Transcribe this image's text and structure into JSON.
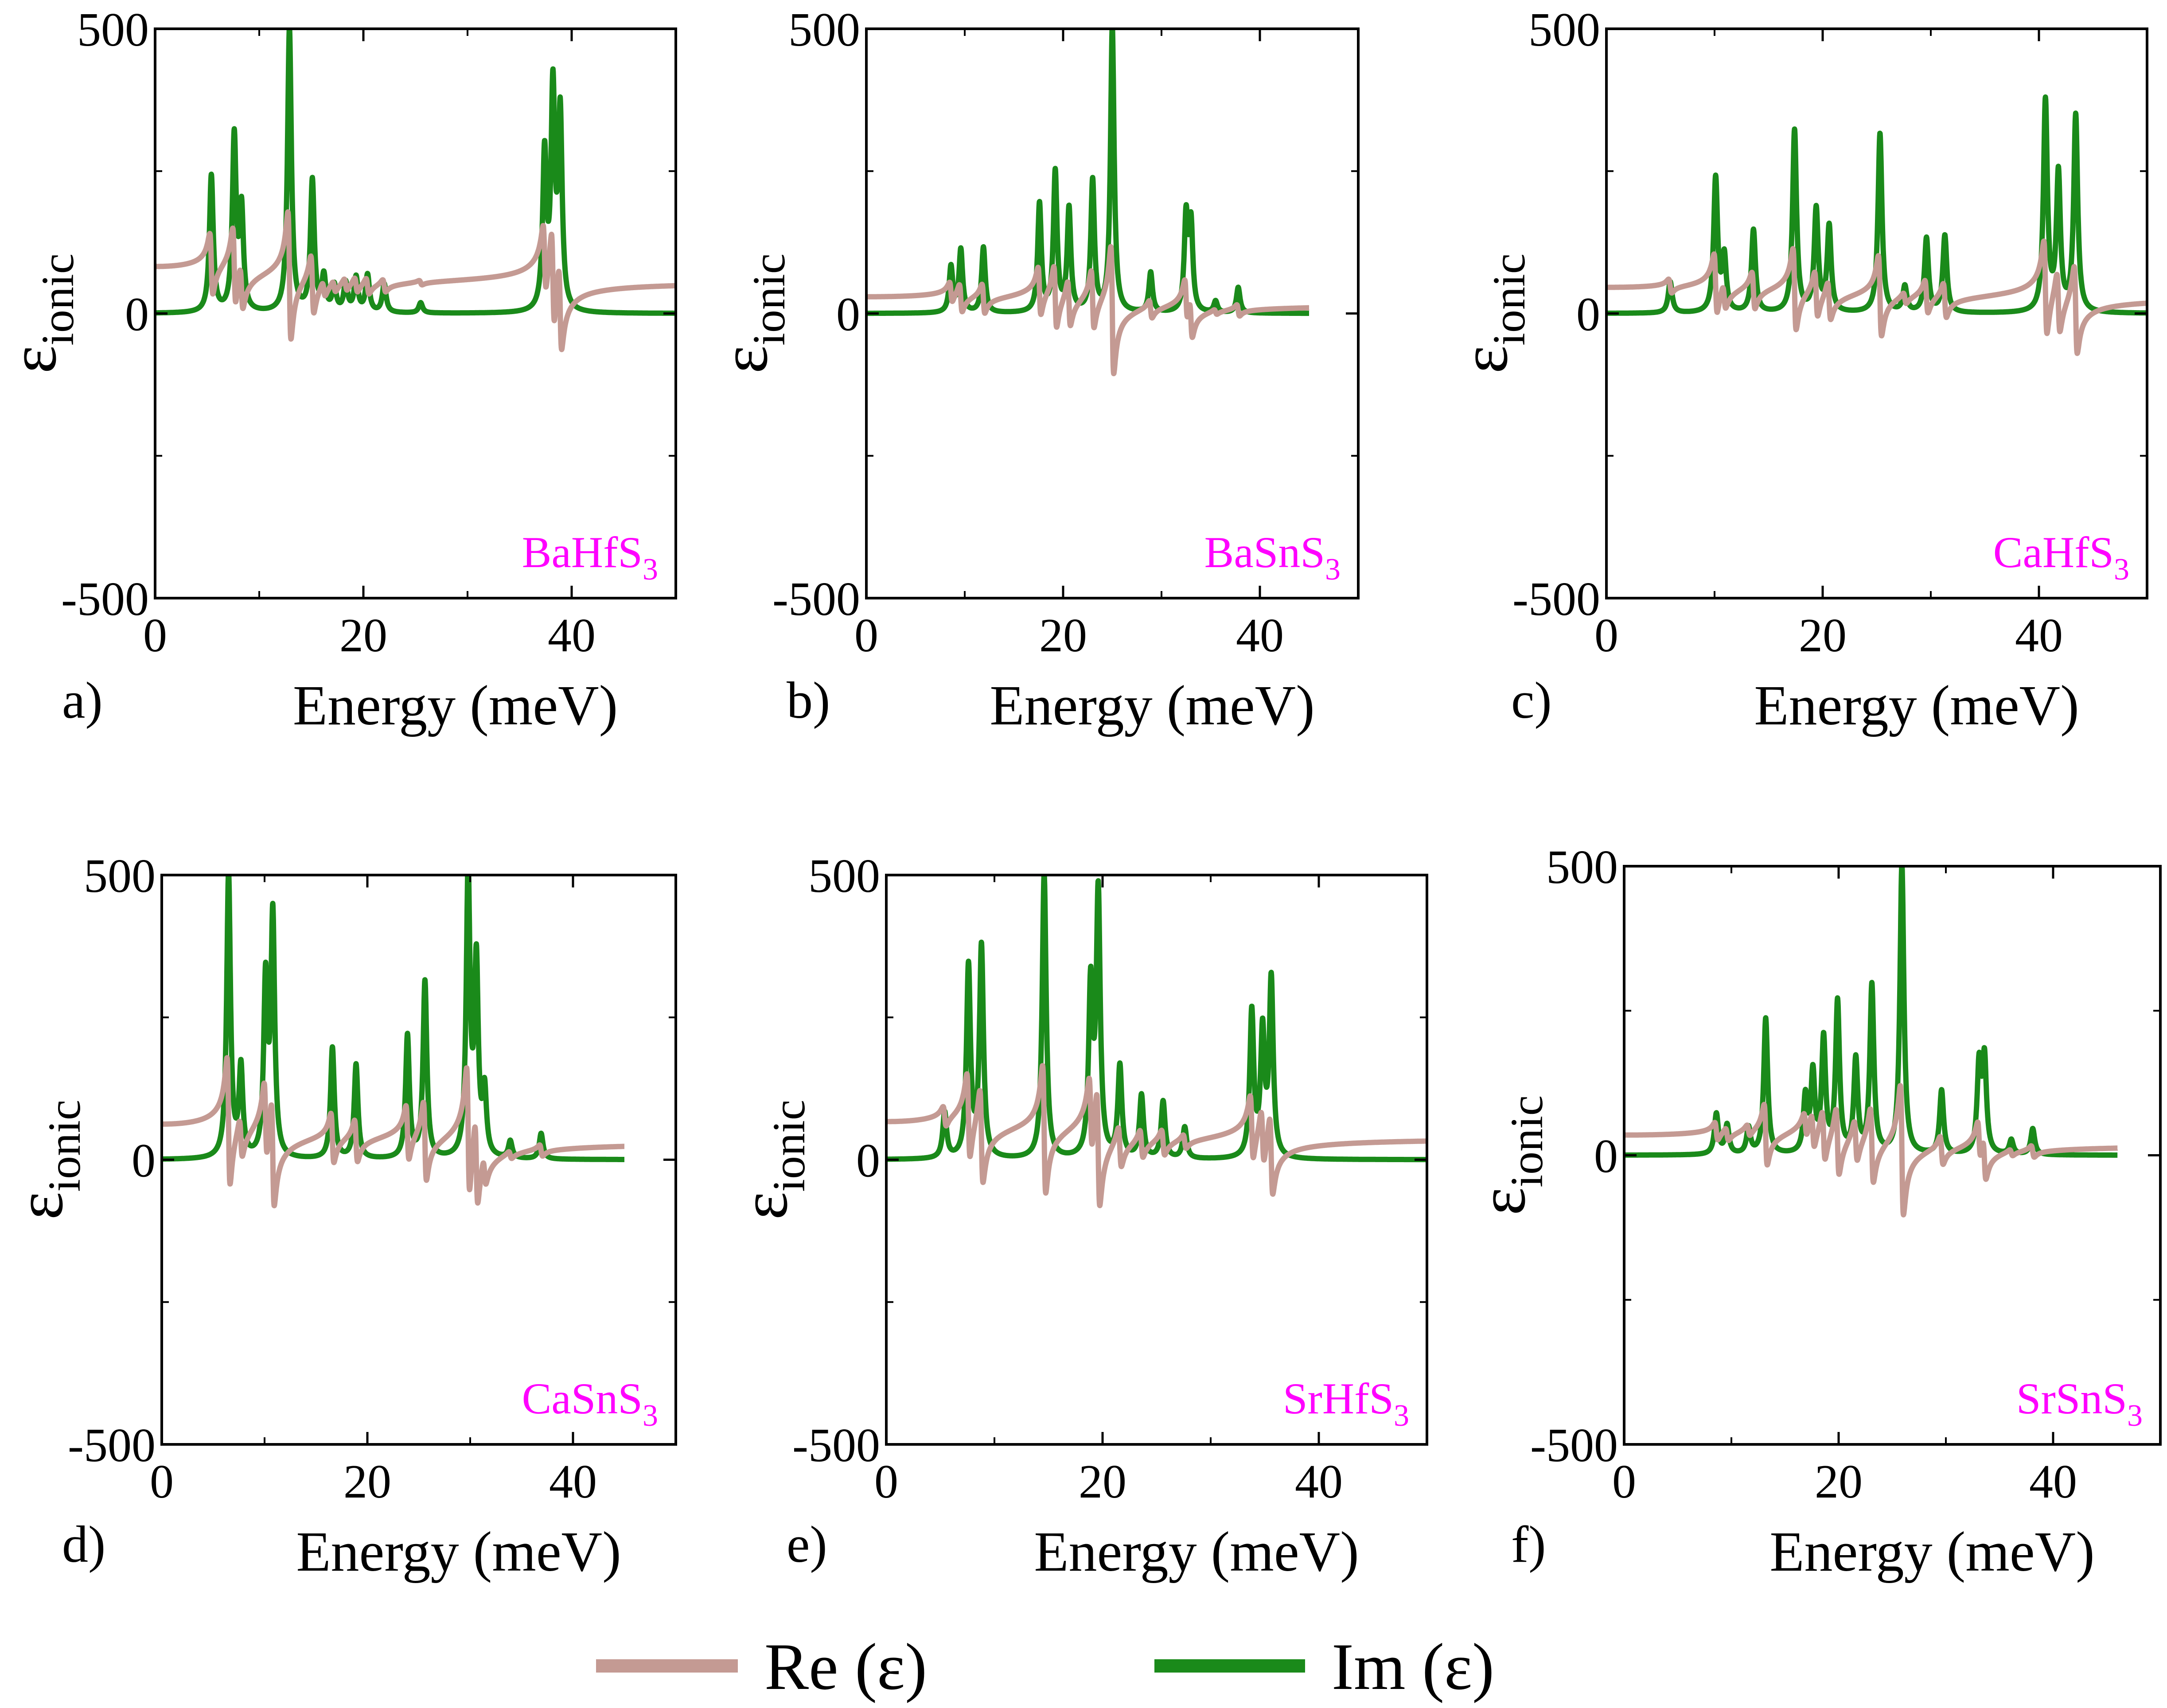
{
  "colors": {
    "re": "#c49a93",
    "im": "#1a8a1a",
    "material": "#ff00ff",
    "axis": "#000000"
  },
  "legend": {
    "re_label": "Re (ε)",
    "im_label": "Im (ε)"
  },
  "chart_data": [
    {
      "type": "line",
      "panel": "a)",
      "material": "BaHfS",
      "material_sub": "3",
      "xlabel": "Energy (meV)",
      "ylabel": "ε",
      "ylabel_sub": "ionic",
      "xlim": [
        0,
        50
      ],
      "ylim": [
        -500,
        500
      ],
      "xticks": [
        0,
        20,
        40
      ],
      "xtick_labels": [
        "0",
        "20",
        "40"
      ],
      "yticks": [
        -500,
        0,
        500
      ],
      "ytick_labels": [
        "-500",
        "0",
        "500"
      ],
      "xmax_data": 50,
      "baseline": 55,
      "modes": [
        {
          "e": 5.4,
          "a": 240
        },
        {
          "e": 7.6,
          "a": 305
        },
        {
          "e": 8.3,
          "a": 175
        },
        {
          "e": 12.9,
          "a": 500
        },
        {
          "e": 15.1,
          "a": 230
        },
        {
          "e": 16.2,
          "a": 60
        },
        {
          "e": 17.2,
          "a": 45
        },
        {
          "e": 18.3,
          "a": 50
        },
        {
          "e": 19.3,
          "a": 60
        },
        {
          "e": 20.4,
          "a": 65
        },
        {
          "e": 22.0,
          "a": 50
        },
        {
          "e": 25.5,
          "a": 18
        },
        {
          "e": 37.4,
          "a": 270
        },
        {
          "e": 38.2,
          "a": 380
        },
        {
          "e": 38.9,
          "a": 340
        }
      ],
      "series": [
        {
          "name": "Re (ε)"
        },
        {
          "name": "Im (ε)"
        }
      ]
    },
    {
      "type": "line",
      "panel": "b)",
      "material": "BaSnS",
      "material_sub": "3",
      "xlabel": "Energy (meV)",
      "ylabel": "ε",
      "ylabel_sub": "ionic",
      "xlim": [
        0,
        50
      ],
      "ylim": [
        -500,
        500
      ],
      "xticks": [
        0,
        20,
        40
      ],
      "xtick_labels": [
        "0",
        "20",
        "40"
      ],
      "yticks": [
        -500,
        0,
        500
      ],
      "ytick_labels": [
        "-500",
        "0",
        "500"
      ],
      "xmax_data": 45,
      "baseline": 15,
      "modes": [
        {
          "e": 8.6,
          "a": 80
        },
        {
          "e": 9.6,
          "a": 110
        },
        {
          "e": 11.9,
          "a": 115
        },
        {
          "e": 17.6,
          "a": 190
        },
        {
          "e": 19.2,
          "a": 245
        },
        {
          "e": 20.6,
          "a": 180
        },
        {
          "e": 23.0,
          "a": 230
        },
        {
          "e": 25.0,
          "a": 500
        },
        {
          "e": 28.9,
          "a": 70
        },
        {
          "e": 32.5,
          "a": 165
        },
        {
          "e": 33.0,
          "a": 150
        },
        {
          "e": 35.5,
          "a": 20
        },
        {
          "e": 37.8,
          "a": 45
        }
      ],
      "series": [
        {
          "name": "Re (ε)"
        },
        {
          "name": "Im (ε)"
        }
      ]
    },
    {
      "type": "line",
      "panel": "c)",
      "material": "CaHfS",
      "material_sub": "3",
      "xlabel": "Energy (meV)",
      "ylabel": "ε",
      "ylabel_sub": "ionic",
      "xlim": [
        0,
        50
      ],
      "ylim": [
        -500,
        500
      ],
      "xticks": [
        0,
        20,
        40
      ],
      "xtick_labels": [
        "0",
        "20",
        "40"
      ],
      "yticks": [
        -500,
        0,
        500
      ],
      "ytick_labels": [
        "-500",
        "0",
        "500"
      ],
      "xmax_data": 50,
      "baseline": 28,
      "modes": [
        {
          "e": 5.9,
          "a": 55
        },
        {
          "e": 10.1,
          "a": 235
        },
        {
          "e": 10.9,
          "a": 95
        },
        {
          "e": 13.6,
          "a": 145
        },
        {
          "e": 17.4,
          "a": 320
        },
        {
          "e": 19.4,
          "a": 180
        },
        {
          "e": 20.6,
          "a": 150
        },
        {
          "e": 25.3,
          "a": 315
        },
        {
          "e": 27.6,
          "a": 45
        },
        {
          "e": 29.6,
          "a": 130
        },
        {
          "e": 31.3,
          "a": 135
        },
        {
          "e": 40.6,
          "a": 370
        },
        {
          "e": 41.8,
          "a": 240
        },
        {
          "e": 43.4,
          "a": 345
        }
      ],
      "series": [
        {
          "name": "Re (ε)"
        },
        {
          "name": "Im (ε)"
        }
      ]
    },
    {
      "type": "line",
      "panel": "d)",
      "material": "CaSnS",
      "material_sub": "3",
      "xlabel": "Energy (meV)",
      "ylabel": "ε",
      "ylabel_sub": "ionic",
      "xlim": [
        0,
        50
      ],
      "ylim": [
        -500,
        500
      ],
      "xticks": [
        0,
        20,
        40
      ],
      "xtick_labels": [
        "0",
        "20",
        "40"
      ],
      "yticks": [
        -500,
        0,
        500
      ],
      "ytick_labels": [
        "-500",
        "0",
        "500"
      ],
      "xmax_data": 45,
      "baseline": 30,
      "modes": [
        {
          "e": 6.5,
          "a": 500
        },
        {
          "e": 7.7,
          "a": 155
        },
        {
          "e": 10.1,
          "a": 305
        },
        {
          "e": 10.8,
          "a": 420
        },
        {
          "e": 16.6,
          "a": 195
        },
        {
          "e": 18.9,
          "a": 165
        },
        {
          "e": 23.9,
          "a": 215
        },
        {
          "e": 25.6,
          "a": 310
        },
        {
          "e": 29.8,
          "a": 500
        },
        {
          "e": 30.6,
          "a": 335
        },
        {
          "e": 31.4,
          "a": 110
        },
        {
          "e": 33.9,
          "a": 30
        },
        {
          "e": 36.9,
          "a": 45
        }
      ],
      "series": [
        {
          "name": "Re (ε)"
        },
        {
          "name": "Im (ε)"
        }
      ]
    },
    {
      "type": "line",
      "panel": "e)",
      "material": "SrHfS",
      "material_sub": "3",
      "xlabel": "Energy (meV)",
      "ylabel": "ε",
      "ylabel_sub": "ionic",
      "xlim": [
        0,
        50
      ],
      "ylim": [
        -500,
        500
      ],
      "xticks": [
        0,
        20,
        40
      ],
      "xtick_labels": [
        "0",
        "20",
        "40"
      ],
      "yticks": [
        -500,
        0,
        500
      ],
      "ytick_labels": [
        "-500",
        "0",
        "500"
      ],
      "xmax_data": 50,
      "baseline": 38,
      "modes": [
        {
          "e": 5.4,
          "a": 80
        },
        {
          "e": 7.6,
          "a": 335
        },
        {
          "e": 8.8,
          "a": 370
        },
        {
          "e": 14.6,
          "a": 500
        },
        {
          "e": 18.9,
          "a": 295
        },
        {
          "e": 19.6,
          "a": 460
        },
        {
          "e": 21.6,
          "a": 160
        },
        {
          "e": 23.6,
          "a": 110
        },
        {
          "e": 25.6,
          "a": 100
        },
        {
          "e": 27.6,
          "a": 55
        },
        {
          "e": 33.8,
          "a": 255
        },
        {
          "e": 34.8,
          "a": 215
        },
        {
          "e": 35.6,
          "a": 310
        }
      ],
      "series": [
        {
          "name": "Re (ε)"
        },
        {
          "name": "Im (ε)"
        }
      ]
    },
    {
      "type": "line",
      "panel": "f)",
      "material": "SrSnS",
      "material_sub": "3",
      "xlabel": "Energy (meV)",
      "ylabel": "ε",
      "ylabel_sub": "ionic",
      "xlim": [
        0,
        50
      ],
      "ylim": [
        -500,
        500
      ],
      "xticks": [
        0,
        20,
        40
      ],
      "xtick_labels": [
        "0",
        "20",
        "40"
      ],
      "yticks": [
        -500,
        0,
        500
      ],
      "ytick_labels": [
        "-500",
        "0",
        "500"
      ],
      "xmax_data": 46,
      "baseline": 18,
      "modes": [
        {
          "e": 8.6,
          "a": 70
        },
        {
          "e": 9.6,
          "a": 50
        },
        {
          "e": 11.6,
          "a": 45
        },
        {
          "e": 13.2,
          "a": 235
        },
        {
          "e": 16.9,
          "a": 95
        },
        {
          "e": 17.6,
          "a": 135
        },
        {
          "e": 18.6,
          "a": 195
        },
        {
          "e": 19.9,
          "a": 260
        },
        {
          "e": 21.6,
          "a": 160
        },
        {
          "e": 23.1,
          "a": 290
        },
        {
          "e": 25.9,
          "a": 500
        },
        {
          "e": 29.6,
          "a": 110
        },
        {
          "e": 33.1,
          "a": 150
        },
        {
          "e": 33.6,
          "a": 160
        },
        {
          "e": 36.1,
          "a": 25
        },
        {
          "e": 38.1,
          "a": 45
        }
      ],
      "series": [
        {
          "name": "Re (ε)"
        },
        {
          "name": "Im (ε)"
        }
      ]
    }
  ]
}
